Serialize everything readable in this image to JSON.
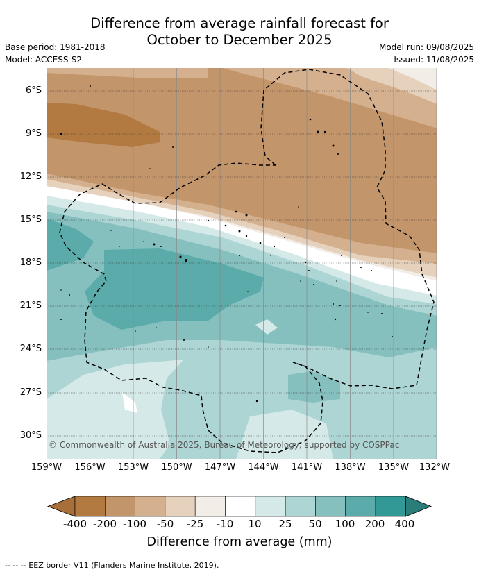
{
  "title_line1": "Difference from average rainfall forecast for",
  "title_line2": "October to December 2025",
  "base_period": "Base period: 1981-2018",
  "model": "Model: ACCESS-S2",
  "model_run": "Model run: 09/08/2025",
  "issued": "Issued: 11/08/2025",
  "lat_labels": [
    "6°S",
    "9°S",
    "12°S",
    "15°S",
    "18°S",
    "21°S",
    "24°S",
    "27°S",
    "30°S"
  ],
  "lon_labels": [
    "159°W",
    "156°W",
    "153°W",
    "150°W",
    "147°W",
    "144°W",
    "141°W",
    "138°W",
    "135°W",
    "132°W"
  ],
  "copyright": "© Commonwealth of Australia 2025, Bureau of Meteorology, supported by COSPPac",
  "colorbar": {
    "labels": [
      "-400",
      "-200",
      "-100",
      "-50",
      "-25",
      "-10",
      "10",
      "25",
      "50",
      "100",
      "200",
      "400"
    ],
    "colors": [
      "#a86f3a",
      "#b27a40",
      "#c3956a",
      "#d4b08f",
      "#e6d1bd",
      "#f2ede7",
      "#ffffff",
      "#d5eae8",
      "#add5d4",
      "#85c0bf",
      "#5aabaa",
      "#339996",
      "#2a7d79"
    ],
    "title": "Difference from average (mm)"
  },
  "legend_text": "-- -- -- EEZ border V11 (Flanders Marine Institute, 2019)."
}
